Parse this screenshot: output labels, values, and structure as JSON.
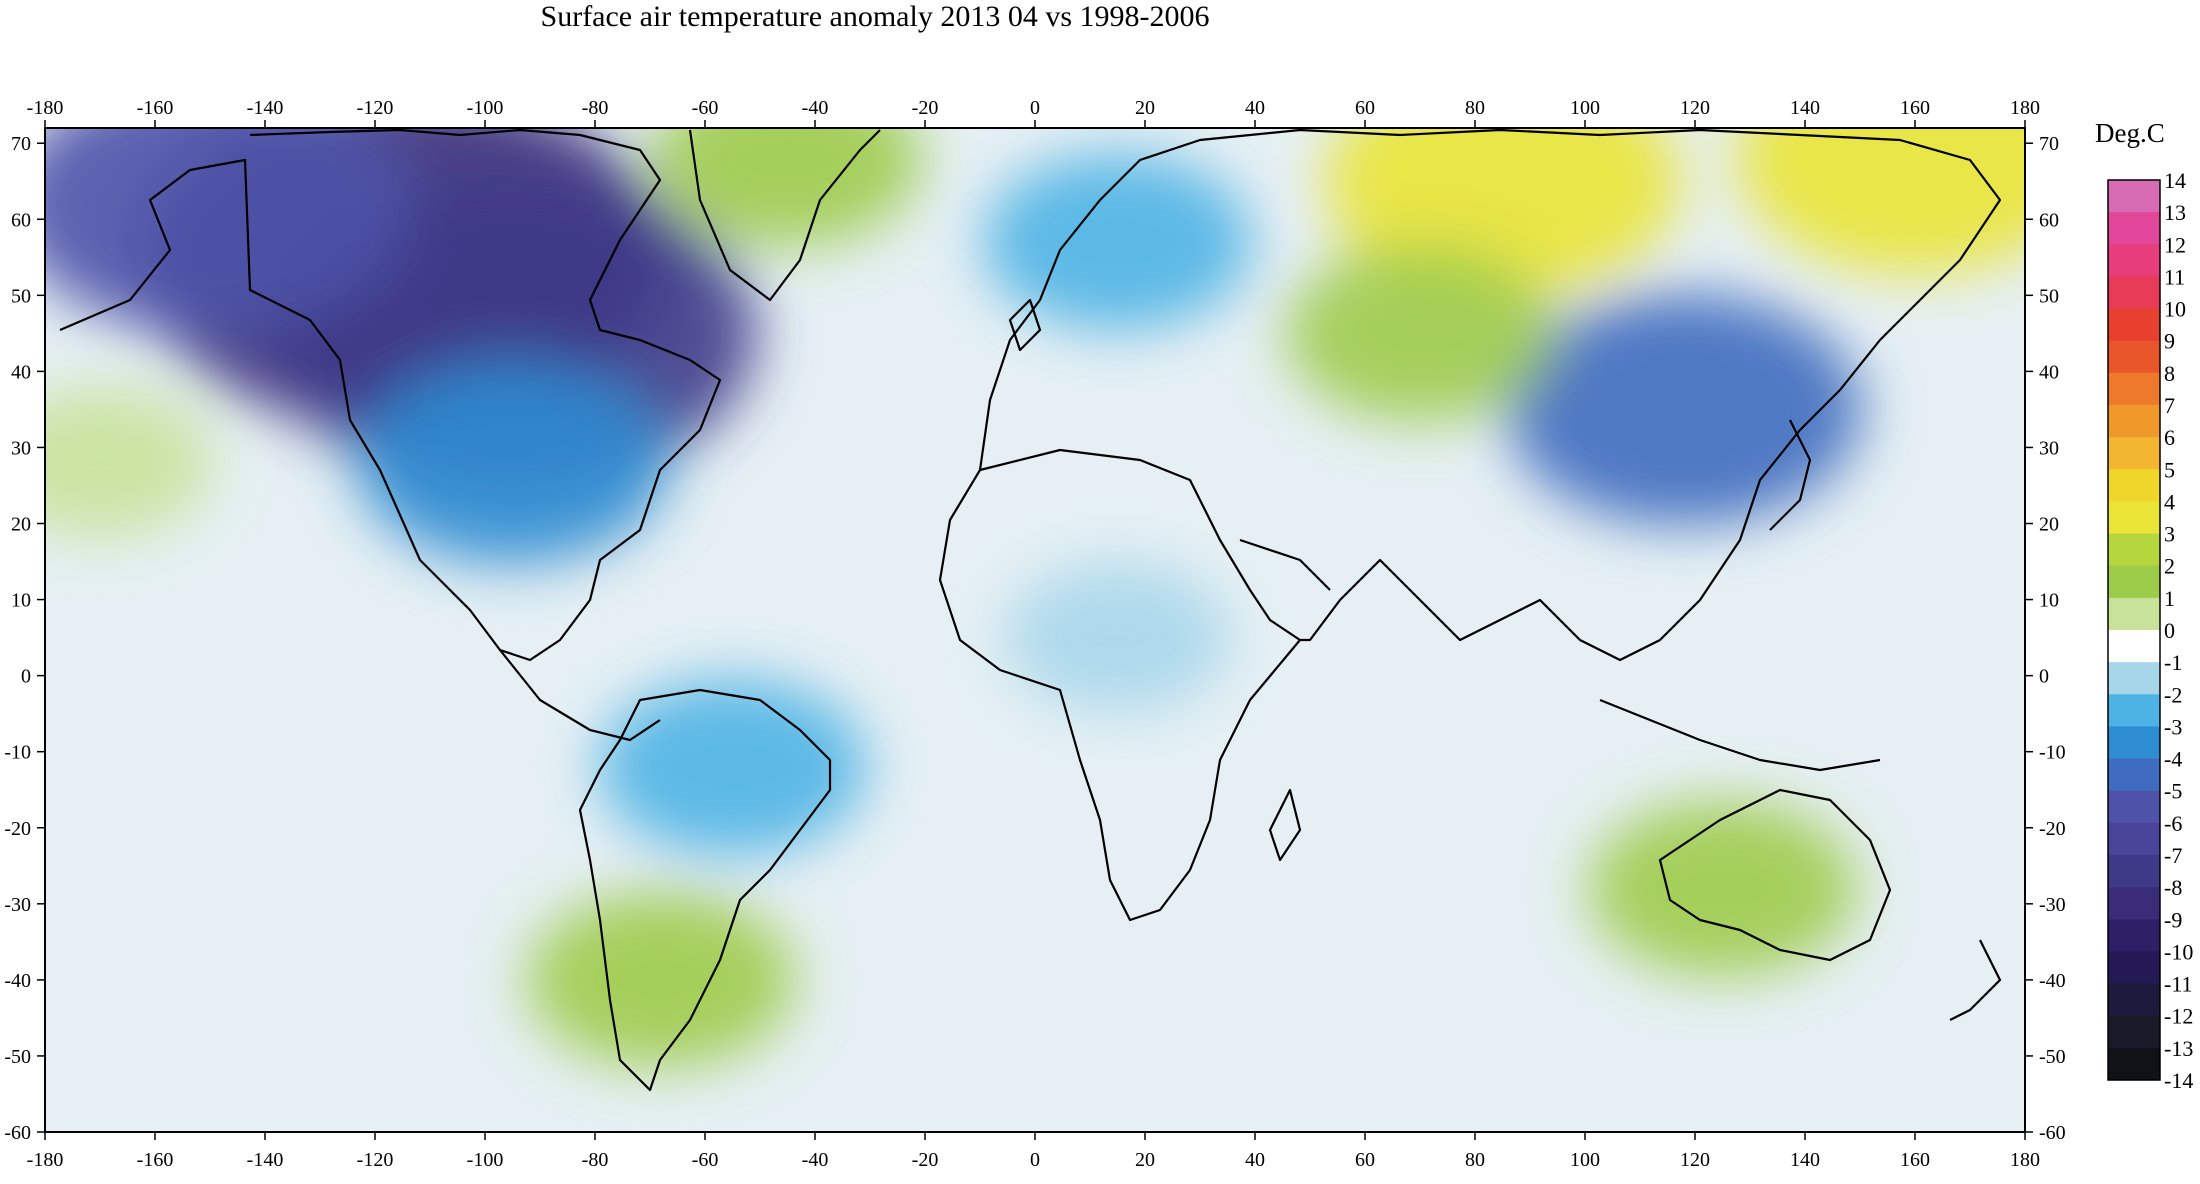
{
  "title": "Surface air temperature anomaly 2013 04 vs 1998-2006",
  "colorbar": {
    "unit": "Deg.C",
    "labels": [
      "14",
      "13",
      "12",
      "11",
      "10",
      "9",
      "8",
      "7",
      "6",
      "5",
      "4",
      "3",
      "2",
      "1",
      "0",
      "-1",
      "-2",
      "-3",
      "-4",
      "-5",
      "-6",
      "-7",
      "-8",
      "-9",
      "-10",
      "-11",
      "-12",
      "-13",
      "-14"
    ],
    "colors": [
      "#d76bb4",
      "#e1469a",
      "#e73d7c",
      "#e73b58",
      "#e8402f",
      "#e9562a",
      "#ec7a2a",
      "#ef992a",
      "#f2b631",
      "#f0d52a",
      "#e9e435",
      "#b6d63e",
      "#9dcb4a",
      "#c9e29a",
      "#ffffff",
      "#a7d6ea",
      "#4db3e4",
      "#2d8cd2",
      "#3f6cbe",
      "#4e52a8",
      "#4a4599",
      "#3f3a88",
      "#3b2c7a",
      "#2e1f66",
      "#241955",
      "#1c1a3d",
      "#181a28",
      "#101218"
    ]
  },
  "axes": {
    "x_ticks": [
      "-180",
      "-160",
      "-140",
      "-120",
      "-100",
      "-80",
      "-60",
      "-40",
      "-20",
      "0",
      "20",
      "40",
      "60",
      "80",
      "100",
      "120",
      "140",
      "160",
      "180"
    ],
    "y_ticks": [
      "70",
      "60",
      "50",
      "40",
      "30",
      "20",
      "10",
      "0",
      "-10",
      "-20",
      "-30",
      "-40",
      "-50",
      "-60"
    ],
    "x_range": [
      -180,
      180
    ],
    "y_range": [
      -60,
      72
    ]
  },
  "anomaly_regions": [
    {
      "name": "north-america-cold",
      "lon": -115,
      "lat": 55,
      "value": -8
    },
    {
      "name": "hudson-cold",
      "lon": -95,
      "lat": 45,
      "value": -7
    },
    {
      "name": "alaska-cold",
      "lon": -150,
      "lat": 62,
      "value": -5
    },
    {
      "name": "central-us-cold",
      "lon": -95,
      "lat": 28,
      "value": -3
    },
    {
      "name": "east-asia-cold",
      "lon": 118,
      "lat": 35,
      "value": -4
    },
    {
      "name": "europe-cold",
      "lon": 15,
      "lat": 57,
      "value": -2
    },
    {
      "name": "north-africa-cold",
      "lon": 15,
      "lat": 5,
      "value": -1
    },
    {
      "name": "south-america-cold",
      "lon": -55,
      "lat": -12,
      "value": -2
    },
    {
      "name": "siberia-warm",
      "lon": 85,
      "lat": 65,
      "value": 4
    },
    {
      "name": "east-siberia-warm",
      "lon": 160,
      "lat": 68,
      "value": 4
    },
    {
      "name": "central-asia-warm",
      "lon": 70,
      "lat": 45,
      "value": 2
    },
    {
      "name": "australia-warm",
      "lon": 125,
      "lat": -28,
      "value": 2
    },
    {
      "name": "patagonia-warm",
      "lon": -68,
      "lat": -40,
      "value": 2
    },
    {
      "name": "greenland-warm",
      "lon": -45,
      "lat": 68,
      "value": 2
    },
    {
      "name": "pacific-warm",
      "lon": -170,
      "lat": 28,
      "value": 1
    }
  ]
}
